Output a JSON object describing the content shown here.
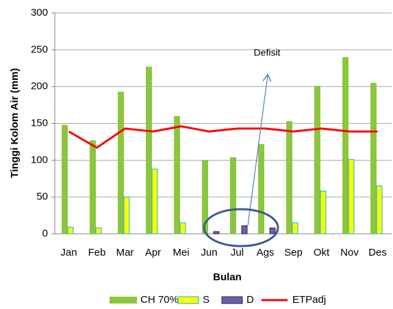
{
  "chart_data": {
    "type": "bar",
    "categories": [
      "Jan",
      "Feb",
      "Mar",
      "Apr",
      "Mei",
      "Jun",
      "Jul",
      "Ags",
      "Sep",
      "Okt",
      "Nov",
      "Des"
    ],
    "series": [
      {
        "name": "CH 70%",
        "type": "bar",
        "color": "#8cc63f",
        "values": [
          148,
          127,
          193,
          227,
          160,
          100,
          104,
          122,
          153,
          201,
          240,
          205
        ]
      },
      {
        "name": "S",
        "type": "bar",
        "color": "#ffff00",
        "edge": "#00b0f0",
        "values": [
          9,
          8,
          50,
          88,
          15,
          0,
          0,
          0,
          15,
          58,
          101,
          65
        ]
      },
      {
        "name": "D",
        "type": "bar",
        "color": "#6f5fa8",
        "edge": "#2f2060",
        "values": [
          0,
          0,
          0,
          0,
          0,
          3,
          11,
          8,
          0,
          0,
          0,
          0
        ]
      },
      {
        "name": "ETPadj",
        "type": "line",
        "color": "#ff0000",
        "values": [
          139,
          117,
          143,
          139,
          146,
          139,
          143,
          143,
          139,
          143,
          139,
          139
        ]
      }
    ],
    "ylim": [
      0,
      300
    ],
    "yticks": [
      0,
      50,
      100,
      150,
      200,
      250,
      300
    ],
    "grid": true,
    "xlabel": "Bulan",
    "ylabel": "Tinggi Kolom Air (mm)",
    "annotation": "Defisit",
    "legend": "bottom"
  }
}
